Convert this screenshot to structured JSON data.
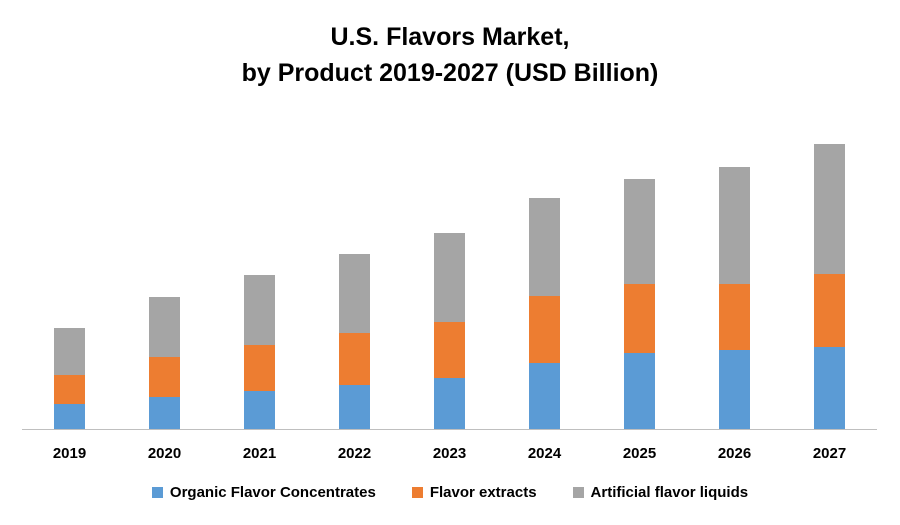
{
  "chart_data": {
    "type": "bar",
    "stacked": true,
    "title_lines": [
      "U.S. Flavors Market,",
      "by Product 2019-2027 (USD Billion)"
    ],
    "categories": [
      "2019",
      "2020",
      "2021",
      "2022",
      "2023",
      "2024",
      "2025",
      "2026",
      "2027"
    ],
    "series": [
      {
        "name": "Organic Flavor Concentrates",
        "color": "#5B9BD5",
        "values": [
          25,
          32,
          38,
          44,
          51,
          66,
          76,
          79,
          82
        ]
      },
      {
        "name": "Flavor extracts",
        "color": "#ED7D31",
        "values": [
          29,
          40,
          46,
          52,
          56,
          67,
          69,
          66,
          73
        ]
      },
      {
        "name": "Artificial flavor liquids",
        "color": "#A5A5A5",
        "values": [
          47,
          60,
          70,
          79,
          89,
          98,
          105,
          117,
          130
        ]
      }
    ],
    "ylim": [
      0,
      300
    ],
    "grid": false,
    "y_axis_visible": false,
    "legend_position": "bottom"
  }
}
